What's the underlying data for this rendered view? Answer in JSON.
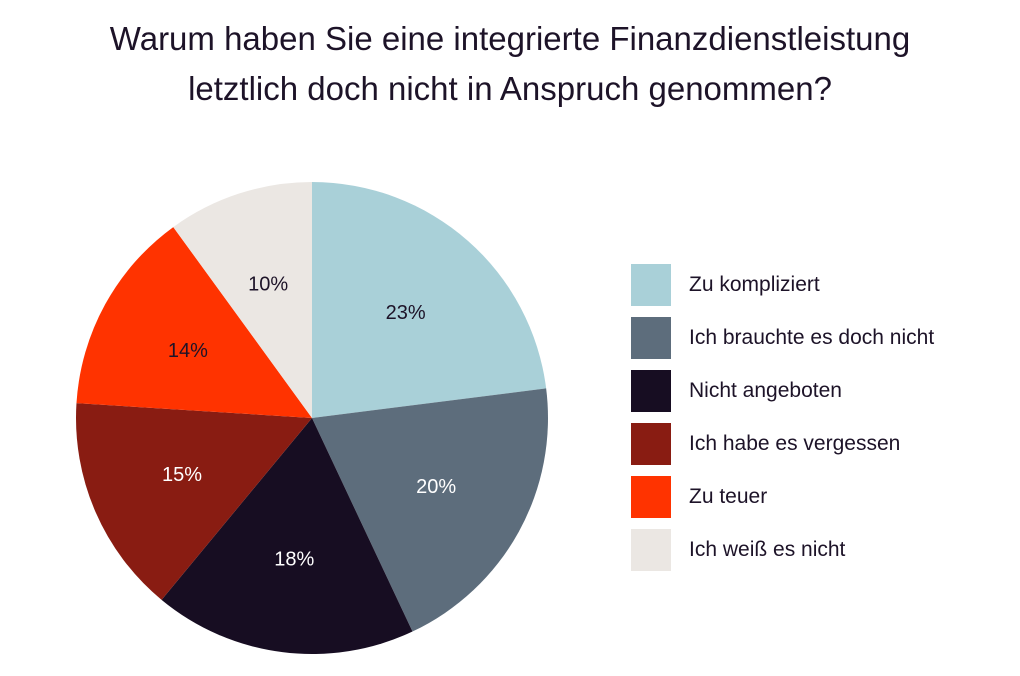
{
  "chart_data": {
    "type": "pie",
    "title_lines": [
      "Warum haben Sie eine integrierte Finanzdienstleistung",
      "letztlich doch nicht in Anspruch genommen?"
    ],
    "slices": [
      {
        "label": "Zu kompliziert",
        "value": 23,
        "value_label": "23%",
        "color": "#a9d0d8",
        "text_color": "#1d1328"
      },
      {
        "label": "Ich brauchte es doch nicht",
        "value": 20,
        "value_label": "20%",
        "color": "#5d6d7c",
        "text_color": "#ffffff"
      },
      {
        "label": "Nicht angeboten",
        "value": 18,
        "value_label": "18%",
        "color": "#170d22",
        "text_color": "#ffffff"
      },
      {
        "label": "Ich habe es vergessen",
        "value": 15,
        "value_label": "15%",
        "color": "#891c12",
        "text_color": "#ffffff"
      },
      {
        "label": "Zu teuer",
        "value": 14,
        "value_label": "14%",
        "color": "#ff3300",
        "text_color": "#1d1328"
      },
      {
        "label": "Ich weiß es nicht",
        "value": 10,
        "value_label": "10%",
        "color": "#ebe7e3",
        "text_color": "#1d1328"
      }
    ],
    "legend_position": "right"
  }
}
